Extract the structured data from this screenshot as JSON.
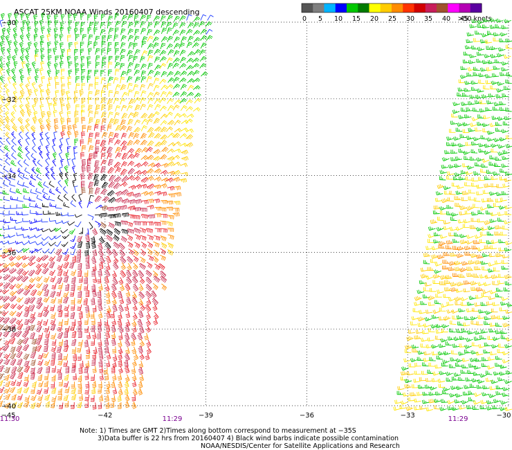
{
  "header": {
    "title": "ASCAT 25KM NOAA Winds 20160407 descending"
  },
  "legend": {
    "labels": [
      "0",
      "5",
      "10",
      "15",
      "20",
      "25",
      "30",
      "35",
      "40",
      "45",
      ">50 knots"
    ],
    "colors": [
      "#555555",
      "#7f7f7f",
      "#00b4ff",
      "#0000ff",
      "#00c800",
      "#007a00",
      "#ffff00",
      "#ffcc00",
      "#ff8c00",
      "#ff3300",
      "#d20000",
      "#c81e5a",
      "#a0522d",
      "#ff00ff",
      "#b400b4",
      "#5a00a0"
    ]
  },
  "footer": {
    "note_line1": "Note: 1) Times are GMT 2)Times along bottom correspond to measurement at −35S",
    "note_line2": "3)Data buffer is 22 hrs from 20160407 4) Black wind barbs indicate possible contamination",
    "note_line3": "NOAA/NESDIS/Center for Satellite Applications and Research"
  },
  "chart_data": {
    "type": "wind-barb map",
    "x_ticks": [
      "−45",
      "−42",
      "−39",
      "−36",
      "−33",
      "−30"
    ],
    "y_ticks": [
      "−30",
      "−32",
      "−34",
      "−36",
      "−38",
      "−40"
    ],
    "xlim": [
      -45,
      -30
    ],
    "ylim": [
      -40,
      -30
    ],
    "time_labels": [
      {
        "lon": -45.0,
        "text": "11:30"
      },
      {
        "lon": -40.0,
        "text": "11:29"
      },
      {
        "lon": -31.5,
        "text": "11:29"
      }
    ],
    "grid": true,
    "legend_position": "top-right",
    "units": "knots",
    "swaths": [
      {
        "name": "west-swath",
        "time": "11:30",
        "lon_range": [
          -45,
          -39.2
        ],
        "lat_range": [
          -40,
          -30
        ],
        "storm_center": [
          -42.6,
          -35.0
        ]
      },
      {
        "name": "east-swath",
        "time": "11:29",
        "lon_range": [
          -33.2,
          -30
        ],
        "lat_range": [
          -40,
          -30
        ]
      }
    ]
  }
}
